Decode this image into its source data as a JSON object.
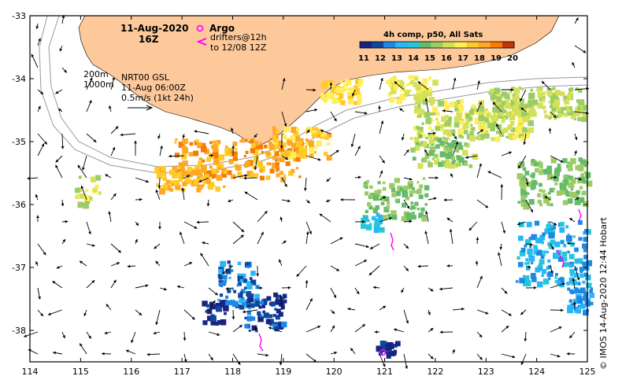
{
  "title": {
    "date": "11-Aug-2020",
    "time": "16Z"
  },
  "legend": {
    "argo_label": "Argo",
    "drifters_label": "drifters@12h",
    "drifters_range": "to 12/08 12Z",
    "argo_color": "#ff00ff",
    "drifter_color": "#ff00ff"
  },
  "colorbar": {
    "title": "4h comp, p50, All Sats",
    "ticks": [
      "11",
      "12",
      "13",
      "14",
      "15",
      "16",
      "17",
      "18",
      "19",
      "20"
    ],
    "colors": [
      "#1a237e",
      "#0d47a1",
      "#1e88e5",
      "#29b6f6",
      "#26c6da",
      "#66bb6a",
      "#9ccc65",
      "#d4e157",
      "#ffee58",
      "#ffca28",
      "#ffa726",
      "#f57c00",
      "#bf360c"
    ]
  },
  "annotations": {
    "isobath1": "200m",
    "isobath2": "1000m",
    "model": "NRT00 GSL",
    "model_time": "11-Aug 06:00Z",
    "scale": "0.5m/s (1kt 24h)"
  },
  "axes": {
    "x_ticks": [
      "114",
      "115",
      "116",
      "117",
      "118",
      "119",
      "120",
      "121",
      "122",
      "123",
      "124",
      "125"
    ],
    "y_ticks": [
      "-33",
      "-34",
      "-35",
      "-36",
      "-37",
      "-38"
    ]
  },
  "credit": "© IMOS 14-Aug-2020 12:44 Hobart",
  "colors": {
    "land": "#fdc89a",
    "frame": "#000000"
  }
}
